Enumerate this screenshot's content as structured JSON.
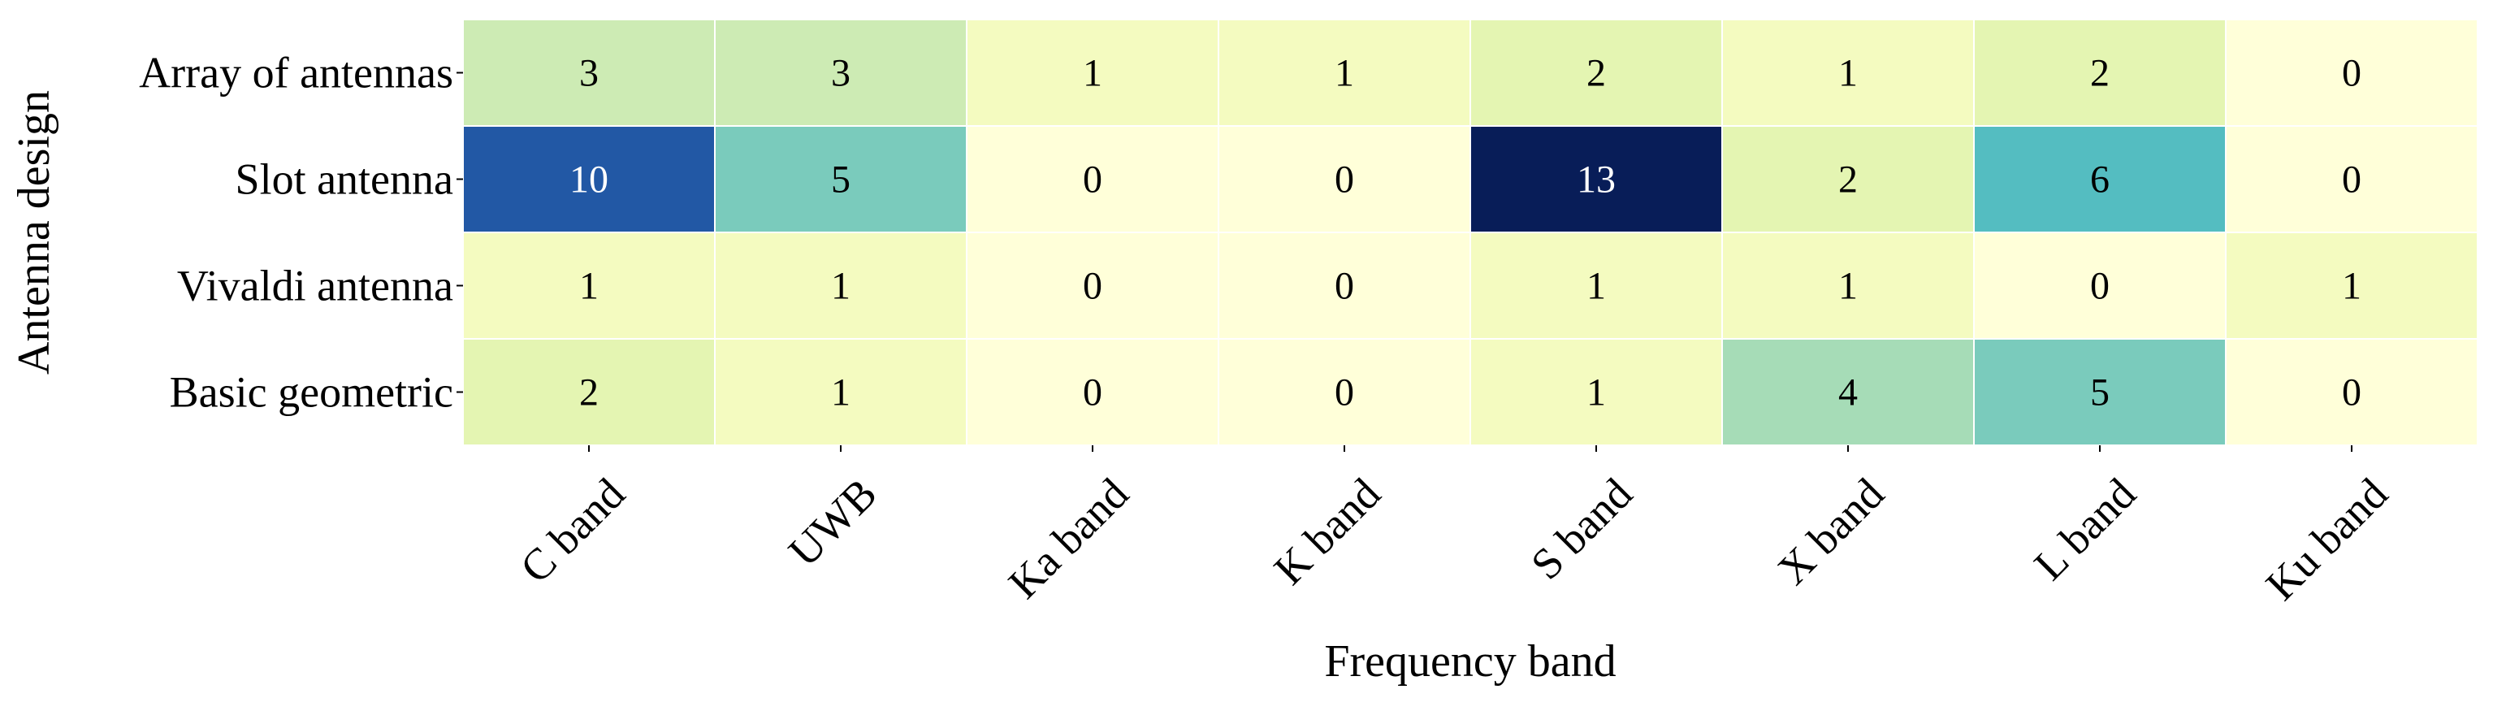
{
  "chart_data": {
    "type": "heatmap",
    "xlabel": "Frequency band",
    "ylabel": "Antenna design",
    "x_categories": [
      "C band",
      "UWB",
      "Ka band",
      "K band",
      "S band",
      "X band",
      "L band",
      "Ku band"
    ],
    "y_categories": [
      "Array of antennas",
      "Slot antenna",
      "Vivaldi antenna",
      "Basic geometric"
    ],
    "values": [
      [
        3,
        3,
        1,
        1,
        2,
        1,
        2,
        0
      ],
      [
        10,
        5,
        0,
        0,
        13,
        2,
        6,
        0
      ],
      [
        1,
        1,
        0,
        0,
        1,
        1,
        0,
        1
      ],
      [
        2,
        1,
        0,
        0,
        1,
        4,
        5,
        0
      ]
    ],
    "value_range": [
      0,
      13
    ],
    "colormap": "YlGnBu",
    "cell_border_color": "#ffffff",
    "annotations": true,
    "colorbar": false
  }
}
